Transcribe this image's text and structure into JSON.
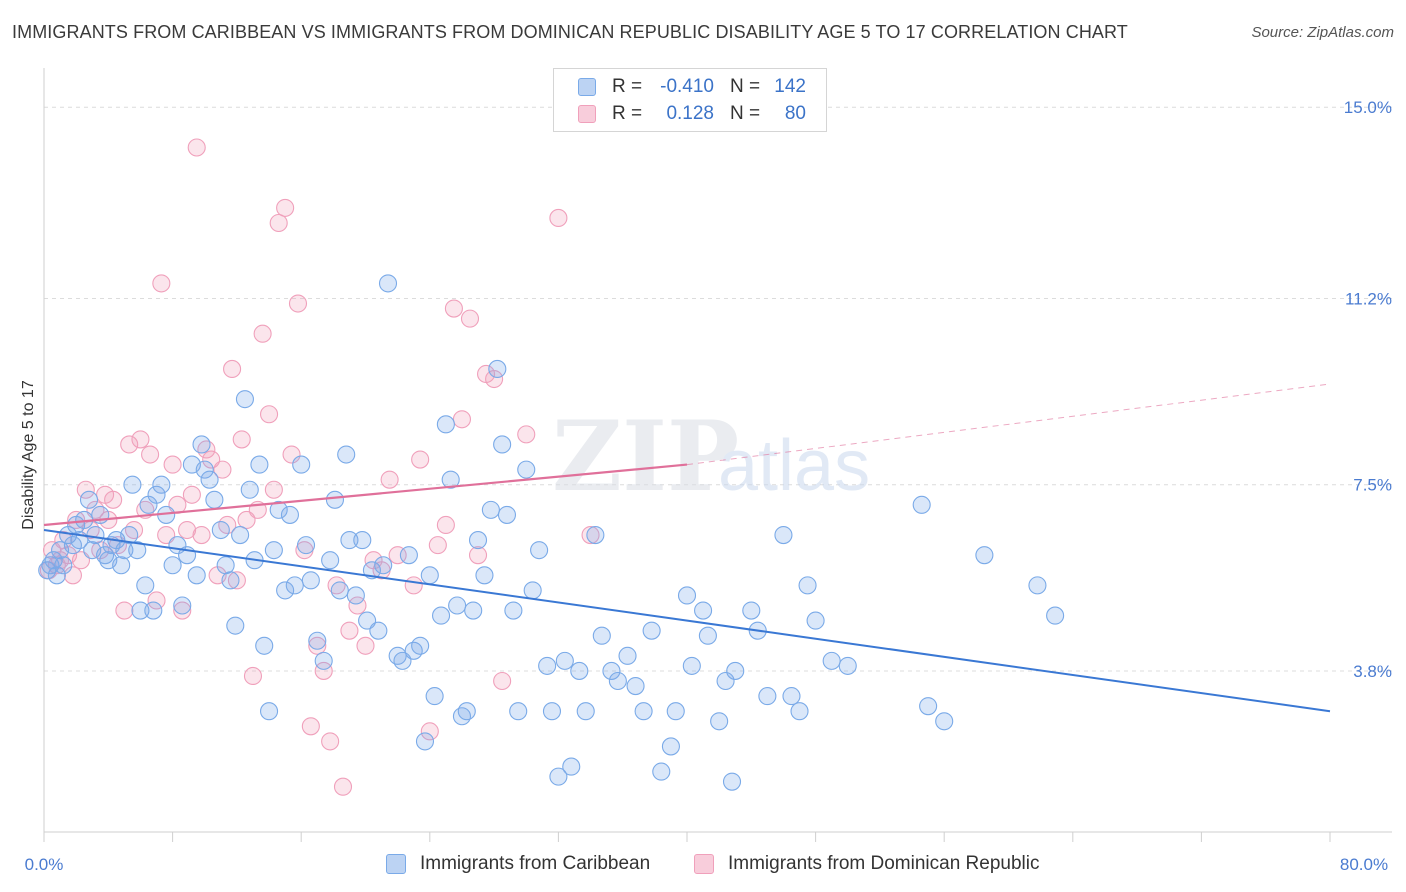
{
  "title": "IMMIGRANTS FROM CARIBBEAN VS IMMIGRANTS FROM DOMINICAN REPUBLIC DISABILITY AGE 5 TO 17 CORRELATION CHART",
  "source": "Source: ZipAtlas.com",
  "legend": {
    "row1": {
      "r_label": "R =",
      "r_value": "-0.410",
      "n_label": "N =",
      "n_value": "142"
    },
    "row2": {
      "r_label": "R =",
      "r_value": "0.128",
      "n_label": "N =",
      "n_value": "80"
    }
  },
  "watermark": {
    "zip": "ZIP",
    "atlas": "atlas"
  },
  "chart_data": {
    "type": "scatter",
    "title": "IMMIGRANTS FROM CARIBBEAN VS IMMIGRANTS FROM DOMINICAN REPUBLIC DISABILITY AGE 5 TO 17 CORRELATION CHART",
    "xlabel": "",
    "ylabel": "Disability Age 5 to 17",
    "xlim": [
      0,
      80
    ],
    "ylim": [
      0.6,
      15.7
    ],
    "x_tick_labels": [
      "0.0%",
      "80.0%"
    ],
    "y_ticks": [
      3.8,
      7.5,
      11.2,
      15.0
    ],
    "y_tick_labels": [
      "3.8%",
      "7.5%",
      "11.2%",
      "15.0%"
    ],
    "colors": {
      "caribbean": "#7aaae8",
      "dominican": "#f0a0bb",
      "caribbean_line": "#3a78d4",
      "dominican_line": "#e0709a"
    },
    "series": [
      {
        "name": "Immigrants from Caribbean",
        "trend": {
          "x": [
            0,
            80
          ],
          "y": [
            6.6,
            3.0
          ]
        },
        "points": [
          [
            0.2,
            5.8
          ],
          [
            0.4,
            5.9
          ],
          [
            0.6,
            6.0
          ],
          [
            0.8,
            5.7
          ],
          [
            1.0,
            6.2
          ],
          [
            1.2,
            5.9
          ],
          [
            1.5,
            6.5
          ],
          [
            1.8,
            6.3
          ],
          [
            2.0,
            6.7
          ],
          [
            2.2,
            6.4
          ],
          [
            2.5,
            6.8
          ],
          [
            2.8,
            7.2
          ],
          [
            3.0,
            6.2
          ],
          [
            3.2,
            6.5
          ],
          [
            3.5,
            6.9
          ],
          [
            3.8,
            6.1
          ],
          [
            4.0,
            6.0
          ],
          [
            4.2,
            6.3
          ],
          [
            4.5,
            6.4
          ],
          [
            4.8,
            5.9
          ],
          [
            5.0,
            6.2
          ],
          [
            5.3,
            6.5
          ],
          [
            5.5,
            7.5
          ],
          [
            5.8,
            6.2
          ],
          [
            6.0,
            5.0
          ],
          [
            6.3,
            5.5
          ],
          [
            6.5,
            7.1
          ],
          [
            6.8,
            5.0
          ],
          [
            7.0,
            7.3
          ],
          [
            7.3,
            7.5
          ],
          [
            7.6,
            6.9
          ],
          [
            8.0,
            5.9
          ],
          [
            8.3,
            6.3
          ],
          [
            8.6,
            5.1
          ],
          [
            8.9,
            6.1
          ],
          [
            9.2,
            7.9
          ],
          [
            9.5,
            5.7
          ],
          [
            9.8,
            8.3
          ],
          [
            10.0,
            7.8
          ],
          [
            10.3,
            7.6
          ],
          [
            10.6,
            7.2
          ],
          [
            11.0,
            6.6
          ],
          [
            11.3,
            5.9
          ],
          [
            11.6,
            5.6
          ],
          [
            11.9,
            4.7
          ],
          [
            12.2,
            6.5
          ],
          [
            12.5,
            9.2
          ],
          [
            12.8,
            7.4
          ],
          [
            13.1,
            6.0
          ],
          [
            13.4,
            7.9
          ],
          [
            13.7,
            4.3
          ],
          [
            14.0,
            3.0
          ],
          [
            14.3,
            6.2
          ],
          [
            14.6,
            7.0
          ],
          [
            15.0,
            5.4
          ],
          [
            15.3,
            6.9
          ],
          [
            15.6,
            5.5
          ],
          [
            16.0,
            7.9
          ],
          [
            16.3,
            6.3
          ],
          [
            16.6,
            5.6
          ],
          [
            17.0,
            4.4
          ],
          [
            17.4,
            4.0
          ],
          [
            17.8,
            6.0
          ],
          [
            18.1,
            7.2
          ],
          [
            18.4,
            5.4
          ],
          [
            18.8,
            8.1
          ],
          [
            19.0,
            6.4
          ],
          [
            19.4,
            5.3
          ],
          [
            19.8,
            6.4
          ],
          [
            20.1,
            4.8
          ],
          [
            20.4,
            5.8
          ],
          [
            20.8,
            4.6
          ],
          [
            21.1,
            5.9
          ],
          [
            21.4,
            11.5
          ],
          [
            22.0,
            4.1
          ],
          [
            22.3,
            4.0
          ],
          [
            22.7,
            6.1
          ],
          [
            23.0,
            4.2
          ],
          [
            23.4,
            4.3
          ],
          [
            23.7,
            2.4
          ],
          [
            24.0,
            5.7
          ],
          [
            24.3,
            3.3
          ],
          [
            24.7,
            4.9
          ],
          [
            25.0,
            8.7
          ],
          [
            25.3,
            7.6
          ],
          [
            25.7,
            5.1
          ],
          [
            26.0,
            2.9
          ],
          [
            26.3,
            3.0
          ],
          [
            26.7,
            5.0
          ],
          [
            27.0,
            6.4
          ],
          [
            27.4,
            5.7
          ],
          [
            27.8,
            7.0
          ],
          [
            28.2,
            9.8
          ],
          [
            28.5,
            8.3
          ],
          [
            28.8,
            6.9
          ],
          [
            29.2,
            5.0
          ],
          [
            29.5,
            3.0
          ],
          [
            30.0,
            7.8
          ],
          [
            30.4,
            5.4
          ],
          [
            30.8,
            6.2
          ],
          [
            31.3,
            3.9
          ],
          [
            31.6,
            3.0
          ],
          [
            32.0,
            1.7
          ],
          [
            32.4,
            4.0
          ],
          [
            32.8,
            1.9
          ],
          [
            33.3,
            3.8
          ],
          [
            33.7,
            3.0
          ],
          [
            34.3,
            6.5
          ],
          [
            34.7,
            4.5
          ],
          [
            35.3,
            3.8
          ],
          [
            35.7,
            3.6
          ],
          [
            36.3,
            4.1
          ],
          [
            36.8,
            3.5
          ],
          [
            37.3,
            3.0
          ],
          [
            37.8,
            4.6
          ],
          [
            38.4,
            1.8
          ],
          [
            39.0,
            2.3
          ],
          [
            39.3,
            3.0
          ],
          [
            40.0,
            5.3
          ],
          [
            40.3,
            3.9
          ],
          [
            41.0,
            5.0
          ],
          [
            41.3,
            4.5
          ],
          [
            42.0,
            2.8
          ],
          [
            42.4,
            3.6
          ],
          [
            42.8,
            1.6
          ],
          [
            43.0,
            3.8
          ],
          [
            44.0,
            5.0
          ],
          [
            44.4,
            4.6
          ],
          [
            45.0,
            3.3
          ],
          [
            46.0,
            6.5
          ],
          [
            46.5,
            3.3
          ],
          [
            47.0,
            3.0
          ],
          [
            47.5,
            5.5
          ],
          [
            48.0,
            4.8
          ],
          [
            49.0,
            4.0
          ],
          [
            50.0,
            3.9
          ],
          [
            54.6,
            7.1
          ],
          [
            55.0,
            3.1
          ],
          [
            56.0,
            2.8
          ],
          [
            58.5,
            6.1
          ],
          [
            61.8,
            5.5
          ],
          [
            62.9,
            4.9
          ]
        ]
      },
      {
        "name": "Immigrants from Dominican Republic",
        "trend": {
          "x": [
            0,
            40
          ],
          "y": [
            6.7,
            7.9
          ],
          "dashed_to": {
            "x": 80,
            "y": 9.5
          }
        },
        "points": [
          [
            0.3,
            5.8
          ],
          [
            0.5,
            6.2
          ],
          [
            0.8,
            5.9
          ],
          [
            1.0,
            6.0
          ],
          [
            1.2,
            6.4
          ],
          [
            1.5,
            6.1
          ],
          [
            1.8,
            5.7
          ],
          [
            2.0,
            6.8
          ],
          [
            2.3,
            6.0
          ],
          [
            2.6,
            7.4
          ],
          [
            2.9,
            6.6
          ],
          [
            3.2,
            7.0
          ],
          [
            3.5,
            6.2
          ],
          [
            3.8,
            7.3
          ],
          [
            4.0,
            6.8
          ],
          [
            4.3,
            7.2
          ],
          [
            4.6,
            6.3
          ],
          [
            5.0,
            5.0
          ],
          [
            5.3,
            8.3
          ],
          [
            5.6,
            6.6
          ],
          [
            6.0,
            8.4
          ],
          [
            6.3,
            7.0
          ],
          [
            6.6,
            8.1
          ],
          [
            7.0,
            5.2
          ],
          [
            7.3,
            11.5
          ],
          [
            7.6,
            6.5
          ],
          [
            8.0,
            7.9
          ],
          [
            8.3,
            7.1
          ],
          [
            8.6,
            5.0
          ],
          [
            8.9,
            6.6
          ],
          [
            9.2,
            7.3
          ],
          [
            9.5,
            14.2
          ],
          [
            9.8,
            6.5
          ],
          [
            10.1,
            8.2
          ],
          [
            10.4,
            8.0
          ],
          [
            10.8,
            5.7
          ],
          [
            11.1,
            7.8
          ],
          [
            11.4,
            6.7
          ],
          [
            11.7,
            9.8
          ],
          [
            12.0,
            5.6
          ],
          [
            12.3,
            8.4
          ],
          [
            12.6,
            6.8
          ],
          [
            13.0,
            3.7
          ],
          [
            13.3,
            7.0
          ],
          [
            13.6,
            10.5
          ],
          [
            14.0,
            8.9
          ],
          [
            14.3,
            7.4
          ],
          [
            14.6,
            12.7
          ],
          [
            15.0,
            13.0
          ],
          [
            15.4,
            8.1
          ],
          [
            15.8,
            11.1
          ],
          [
            16.2,
            6.2
          ],
          [
            16.6,
            2.7
          ],
          [
            17.0,
            4.3
          ],
          [
            17.4,
            3.8
          ],
          [
            17.8,
            2.4
          ],
          [
            18.2,
            5.5
          ],
          [
            18.6,
            1.5
          ],
          [
            19.0,
            4.6
          ],
          [
            19.5,
            5.1
          ],
          [
            20.0,
            4.3
          ],
          [
            20.5,
            6.0
          ],
          [
            21.0,
            5.8
          ],
          [
            21.5,
            7.6
          ],
          [
            22.0,
            6.1
          ],
          [
            23.0,
            5.5
          ],
          [
            23.4,
            8.0
          ],
          [
            24.0,
            2.6
          ],
          [
            24.5,
            6.3
          ],
          [
            25.0,
            6.7
          ],
          [
            25.5,
            11.0
          ],
          [
            26.0,
            8.8
          ],
          [
            26.5,
            10.8
          ],
          [
            27.0,
            6.1
          ],
          [
            27.5,
            9.7
          ],
          [
            28.0,
            9.6
          ],
          [
            28.5,
            3.6
          ],
          [
            30.0,
            8.5
          ],
          [
            32.0,
            12.8
          ],
          [
            34.0,
            6.5
          ]
        ]
      }
    ]
  },
  "bottom_legend": {
    "caribbean": "Immigrants from Caribbean",
    "dominican": "Immigrants from Dominican Republic"
  }
}
